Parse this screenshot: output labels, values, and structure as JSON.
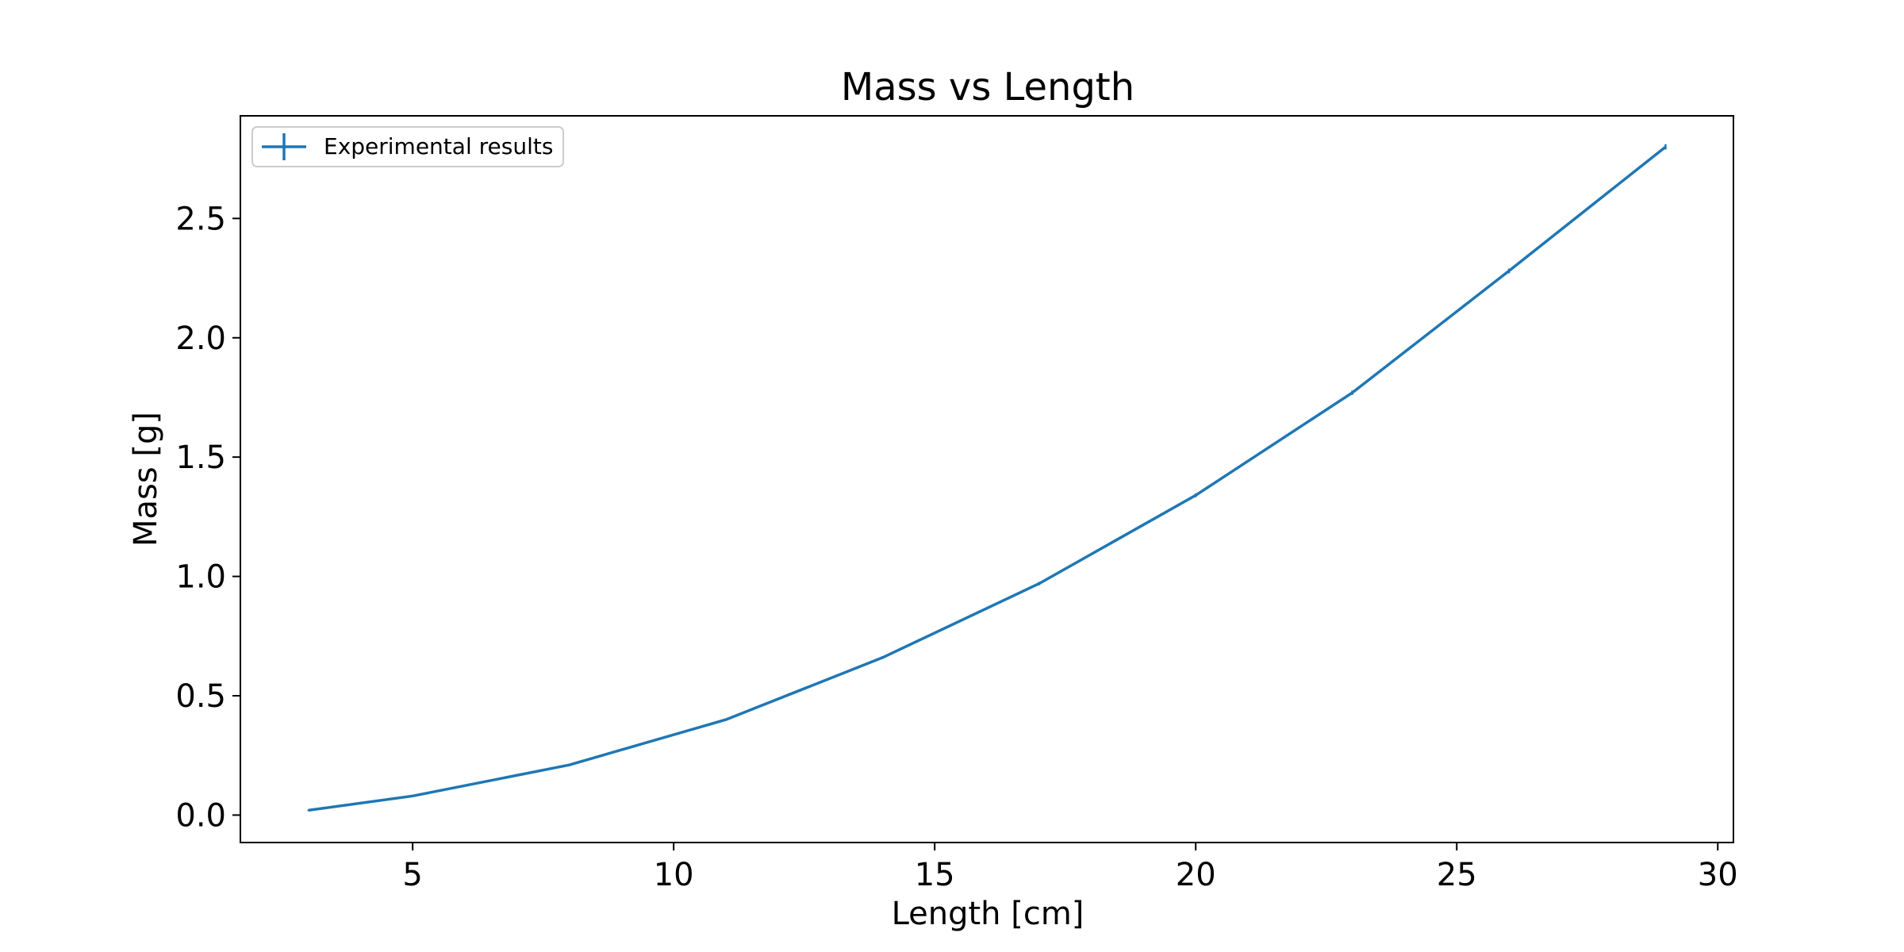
{
  "chart_data": {
    "type": "line",
    "title": "Mass vs Length",
    "xlabel": "Length [cm]",
    "ylabel": "Mass [g]",
    "xlim": [
      1.7,
      30.3
    ],
    "ylim": [
      -0.115,
      2.93
    ],
    "x_ticks": [
      5,
      10,
      15,
      20,
      25,
      30
    ],
    "y_ticks": [
      0.0,
      0.5,
      1.0,
      1.5,
      2.0,
      2.5
    ],
    "x_tick_labels": [
      "5",
      "10",
      "15",
      "20",
      "25",
      "30"
    ],
    "y_tick_labels": [
      "0.0",
      "0.5",
      "1.0",
      "1.5",
      "2.0",
      "2.5"
    ],
    "grid": false,
    "legend": {
      "position": "top-left",
      "entries": [
        "Experimental results"
      ]
    },
    "series": [
      {
        "name": "Experimental results",
        "color": "#1f77b4",
        "marker": "errorbar",
        "x": [
          3,
          5,
          8,
          11,
          14,
          17,
          20,
          23,
          26,
          29
        ],
        "y": [
          0.02,
          0.08,
          0.21,
          0.4,
          0.66,
          0.97,
          1.34,
          1.77,
          2.28,
          2.8
        ],
        "yerr": [
          0.002,
          0.003,
          0.004,
          0.005,
          0.006,
          0.007,
          0.008,
          0.009,
          0.01,
          0.011
        ]
      }
    ]
  }
}
